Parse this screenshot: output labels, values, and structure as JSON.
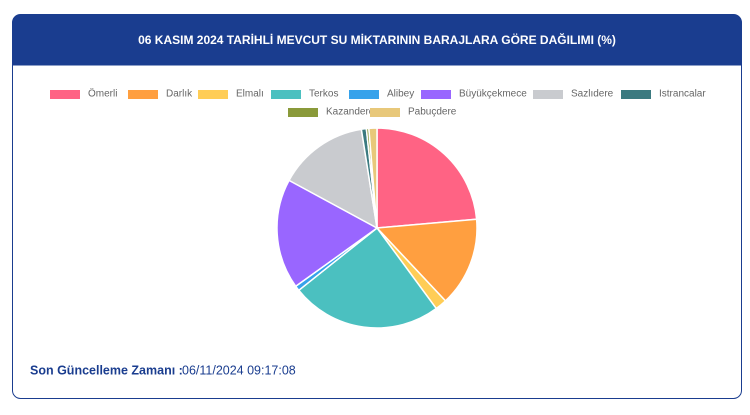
{
  "chart_data": {
    "type": "pie",
    "title": "06 KASIM 2024 TARİHLİ MEVCUT SU MİKTARININ BARAJLARA GÖRE DAĞILIMI (%)",
    "categories": [
      "Ömerli",
      "Darlık",
      "Elmalı",
      "Terkos",
      "Alibey",
      "Büyükçekmece",
      "Sazlıdere",
      "Istrancalar",
      "Kazandere",
      "Pabuçdere"
    ],
    "values": [
      23.6,
      14.4,
      1.9,
      24.4,
      0.8,
      17.8,
      14.6,
      0.8,
      0.4,
      1.3
    ],
    "colors": [
      "#ff6384",
      "#ff9f40",
      "#ffcd56",
      "#4bc0c0",
      "#36a2eb",
      "#9966ff",
      "#c9cbcf",
      "#3b7a80",
      "#8a9a3a",
      "#e8c87a"
    ]
  },
  "footer": {
    "label": "Son Güncelleme Zamanı :",
    "value": "06/11/2024 09:17:08"
  }
}
